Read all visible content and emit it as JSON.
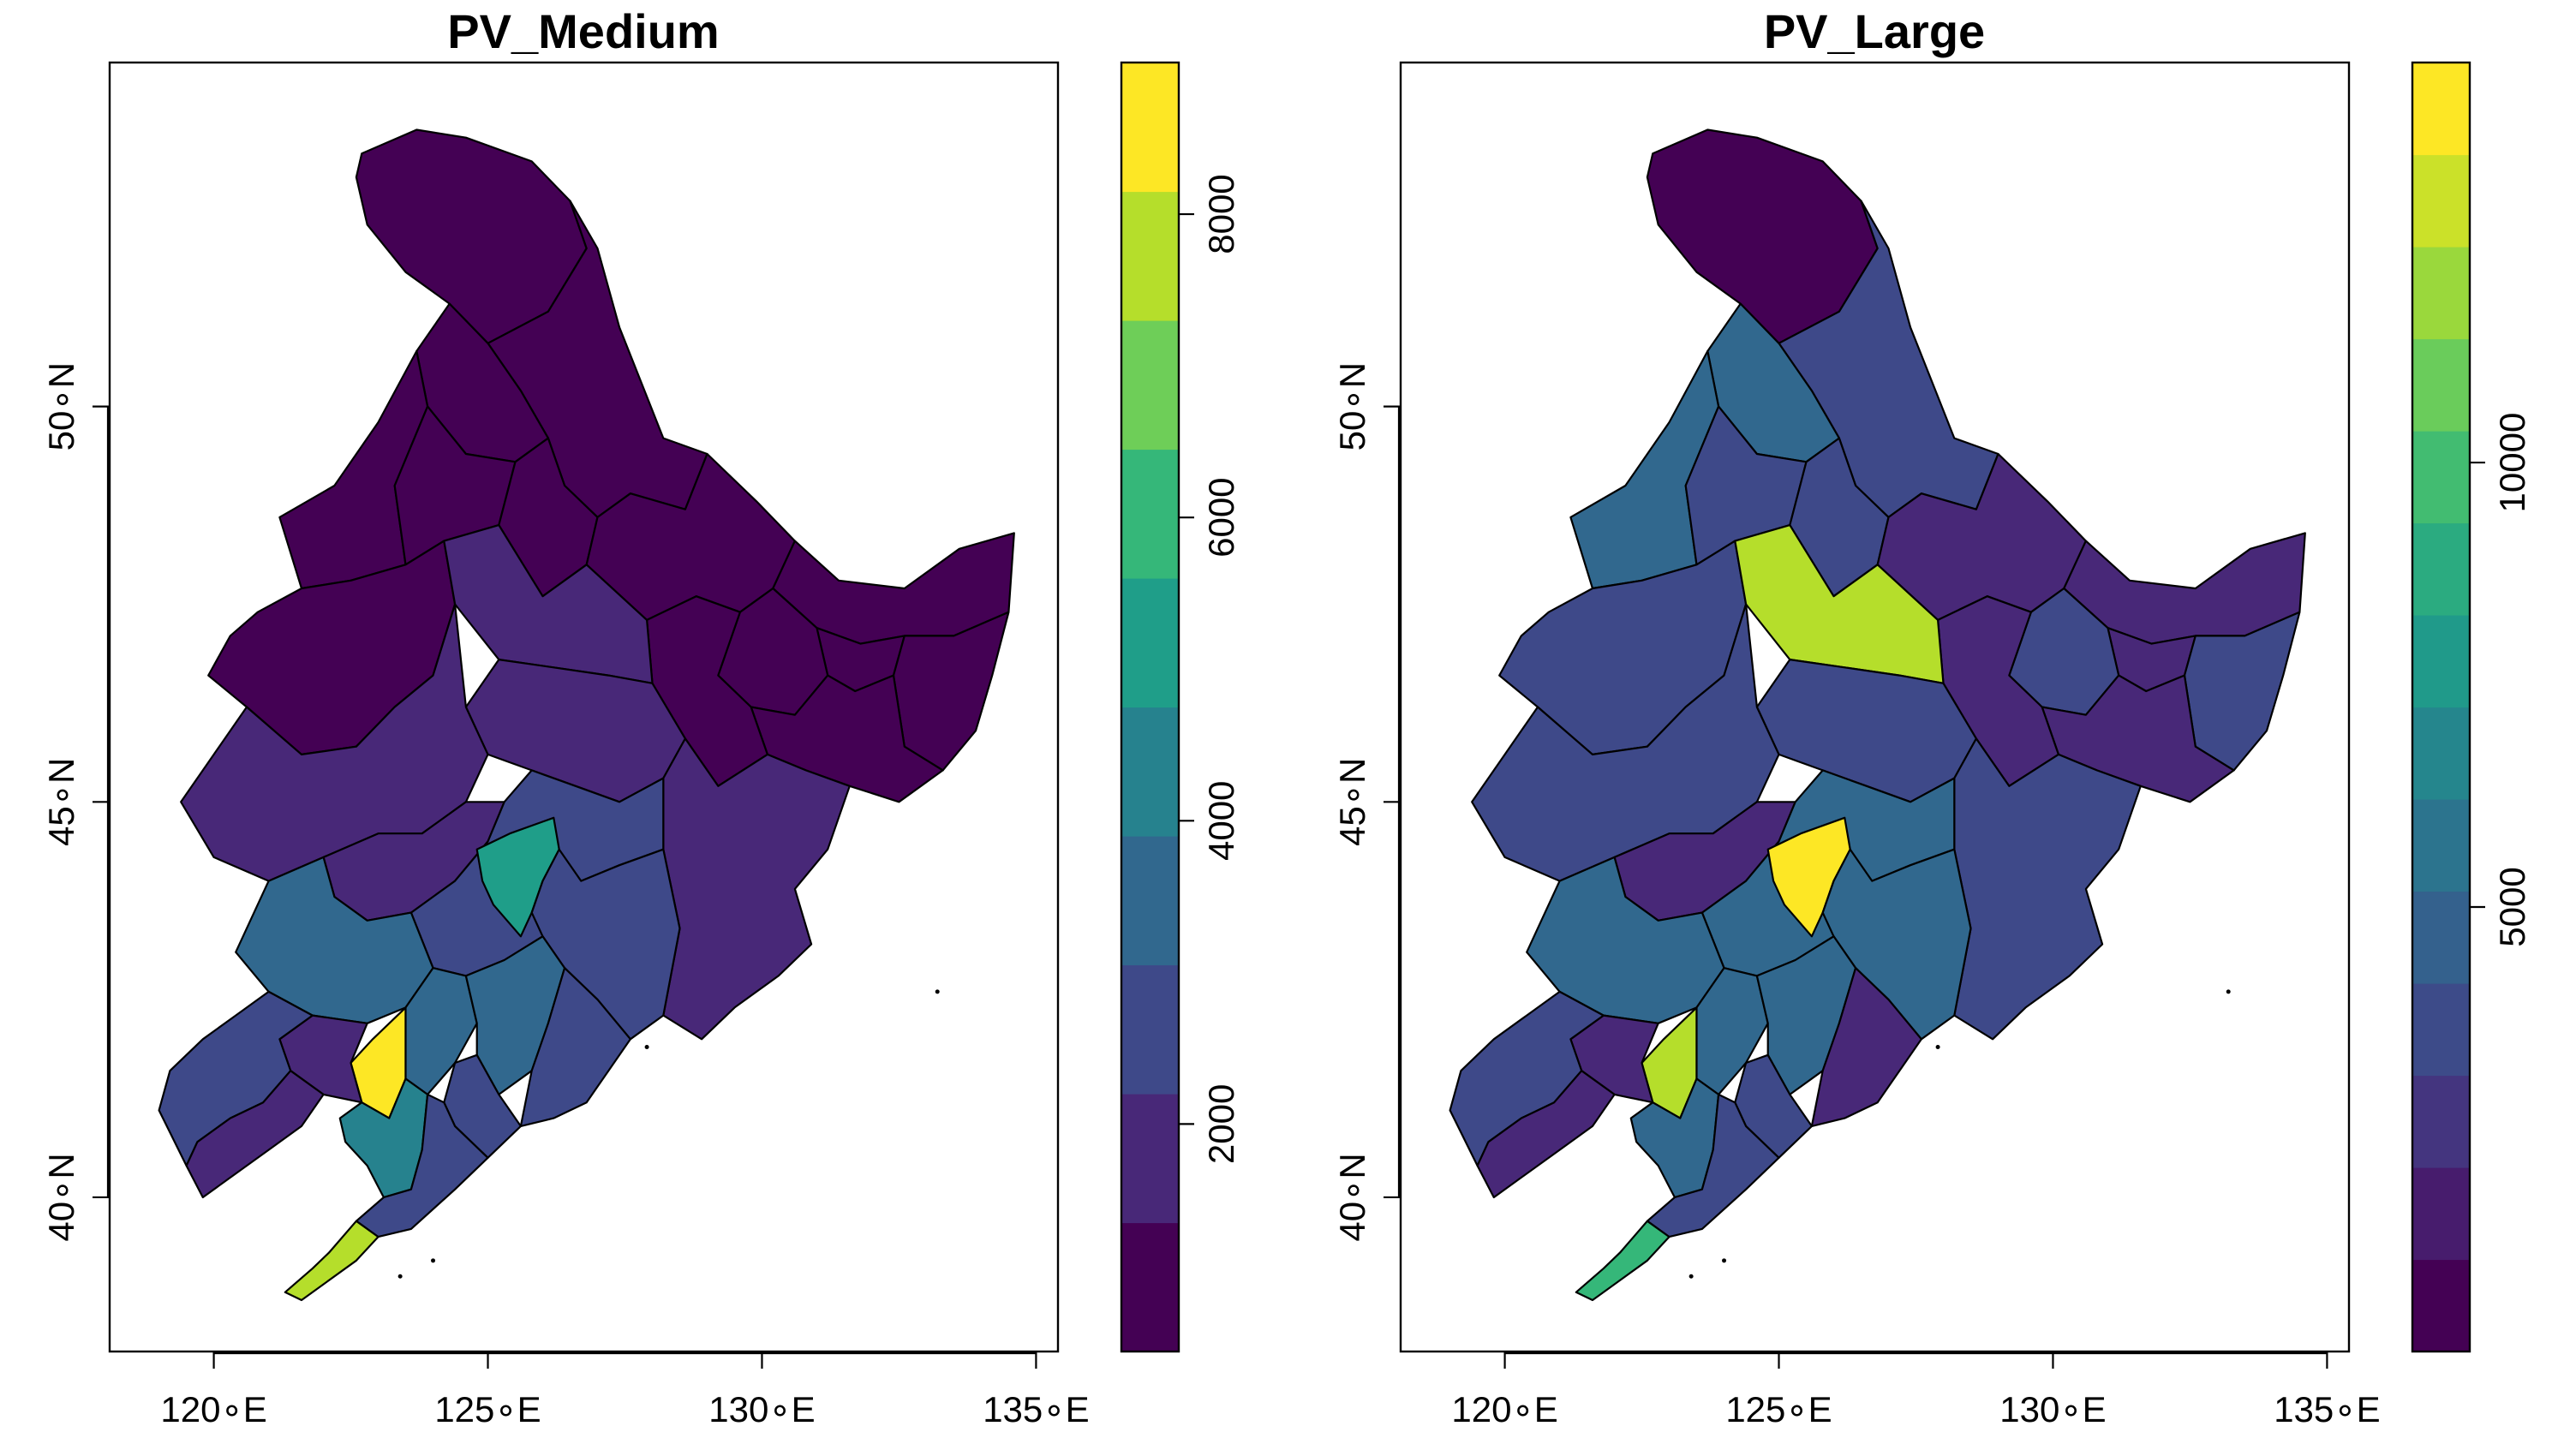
{
  "palette": [
    "#440154",
    "#482878",
    "#3e4989",
    "#31688e",
    "#26828e",
    "#1f9e89",
    "#35b779",
    "#6ece58",
    "#b5de2b",
    "#fde725"
  ],
  "axes": {
    "x_ticks": [
      {
        "value": 120,
        "label": "120∘E"
      },
      {
        "value": 125,
        "label": "125∘E"
      },
      {
        "value": 130,
        "label": "130∘E"
      },
      {
        "value": 135,
        "label": "135∘E"
      }
    ],
    "y_ticks": [
      {
        "value": 40,
        "label": "40∘N"
      },
      {
        "value": 45,
        "label": "45∘N"
      },
      {
        "value": 50,
        "label": "50∘N"
      }
    ],
    "xlim": [
      118.1,
      135.4
    ],
    "ylim": [
      38.05,
      54.35
    ]
  },
  "panels": [
    {
      "title": "PV_Medium",
      "legend": {
        "range": [
          500,
          9000
        ],
        "ticks": [
          {
            "value": 2000,
            "label": "2000"
          },
          {
            "value": 4000,
            "label": "4000"
          },
          {
            "value": 6000,
            "label": "6000"
          },
          {
            "value": 8000,
            "label": "8000"
          }
        ],
        "bins": 10
      },
      "region_levels": [
        0,
        0,
        0,
        0,
        0,
        0,
        0,
        0,
        0,
        0,
        0,
        0,
        0,
        0,
        1,
        1,
        1,
        1,
        1,
        2,
        5,
        2,
        3,
        9,
        3,
        3,
        2,
        2,
        1,
        2,
        1,
        4,
        2,
        8
      ]
    },
    {
      "title": "PV_Large",
      "legend": {
        "range": [
          0,
          14500
        ],
        "ticks": [
          {
            "value": 5000,
            "label": "5000"
          },
          {
            "value": 10000,
            "label": "10000"
          }
        ],
        "bins": 14
      },
      "region_levels": [
        0,
        2,
        3,
        3,
        2,
        2,
        1,
        1,
        1,
        2,
        2,
        1,
        1,
        2,
        8,
        2,
        2,
        2,
        1,
        3,
        9,
        3,
        3,
        8,
        3,
        3,
        2,
        1,
        1,
        2,
        1,
        3,
        2,
        6
      ]
    }
  ]
}
